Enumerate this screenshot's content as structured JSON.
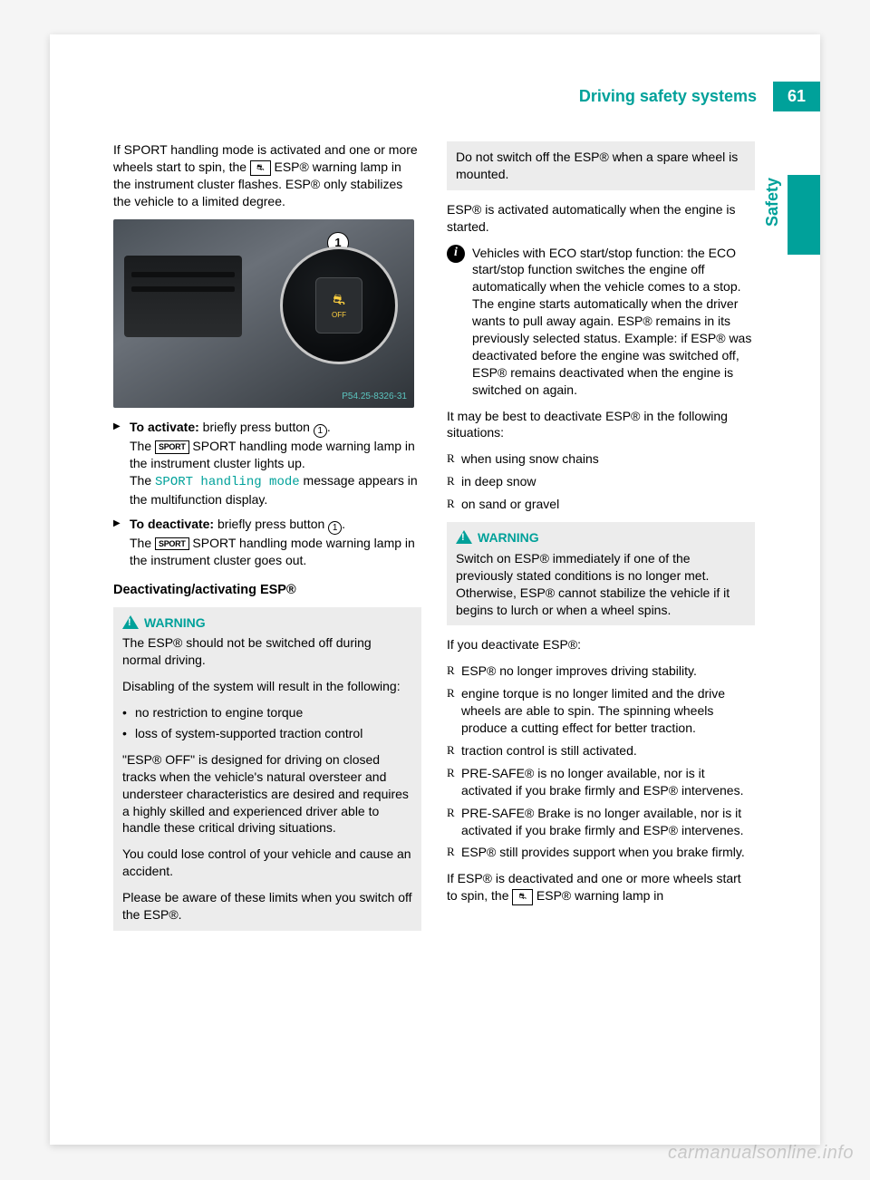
{
  "header": {
    "section_title": "Driving safety systems",
    "page_number": "61",
    "side_label": "Safety"
  },
  "watermark": "carmanualsonline.info",
  "figure": {
    "ref": "P54.25-8326-31",
    "callout": "1",
    "btn_label": "OFF"
  },
  "left": {
    "intro": "If SPORT handling mode is activated and one or more wheels start to spin, the ",
    "intro_icon": "⚠",
    "intro2": " ESP® warning lamp in the instrument cluster flashes. ESP® only stabilizes the vehicle to a limited degree.",
    "activate_lead": "To activate:",
    "activate_rest": " briefly press button ",
    "activate_end": ".",
    "activate_line2a": "The ",
    "activate_sport": "SPORT",
    "activate_line2b": " SPORT handling mode warning lamp in the instrument cluster lights up.",
    "activate_line3a": "The ",
    "activate_mono": "SPORT handling mode",
    "activate_line3b": " message appears in the multifunction display.",
    "deactivate_lead": "To deactivate:",
    "deactivate_rest": " briefly press button ",
    "deactivate_end": ".",
    "deactivate_line2a": "The ",
    "deactivate_sport": "SPORT",
    "deactivate_line2b": " SPORT handling mode warning lamp in the instrument cluster goes out.",
    "h4": "Deactivating/activating ESP®",
    "warn_label": "WARNING",
    "warn_p1": "The ESP® should not be switched off during normal driving.",
    "warn_p2": "Disabling of the system will result in the following:",
    "warn_b1": "no restriction to engine torque",
    "warn_b2": "loss of system-supported traction control",
    "warn_p3": "\"ESP® OFF\" is designed for driving on closed tracks when the vehicle's natural oversteer and understeer characteristics are desired and requires a highly skilled and experienced driver able to handle these critical driving situations.",
    "warn_p4": "You could lose control of your vehicle and cause an accident.",
    "warn_p5": "Please be aware of these limits when you switch off the ESP®."
  },
  "right": {
    "top_box": "Do not switch off the ESP® when a spare wheel is mounted.",
    "p1": "ESP® is activated automatically when the engine is started.",
    "info": "Vehicles with ECO start/stop function: the ECO start/stop function switches the engine off automatically when the vehicle comes to a stop. The engine starts automatically when the driver wants to pull away again. ESP® remains in its previously selected status. Example: if ESP® was deactivated before the engine was switched off, ESP® remains deactivated when the engine is switched on again.",
    "p2": "It may be best to deactivate ESP® in the following situations:",
    "s1": "when using snow chains",
    "s2": "in deep snow",
    "s3": "on sand or gravel",
    "warn_label": "WARNING",
    "warn_p": "Switch on ESP® immediately if one of the previously stated conditions is no longer met. Otherwise, ESP® cannot stabilize the vehicle if it begins to lurch or when a wheel spins.",
    "p3": "If you deactivate ESP®:",
    "d1": "ESP® no longer improves driving stability.",
    "d2": "engine torque is no longer limited and the drive wheels are able to spin. The spinning wheels produce a cutting effect for better traction.",
    "d3": "traction control is still activated.",
    "d4": "PRE-SAFE® is no longer available, nor is it activated if you brake firmly and ESP® intervenes.",
    "d5": "PRE-SAFE® Brake is no longer available, nor is it activated if you brake firmly and ESP® intervenes.",
    "d6": "ESP® still provides support when you brake firmly.",
    "p4a": "If ESP® is deactivated and one or more wheels start to spin, the ",
    "p4b": " ESP® warning lamp in"
  }
}
